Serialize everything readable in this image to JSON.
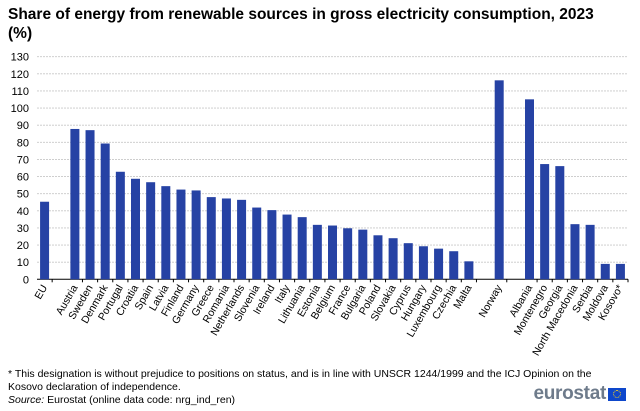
{
  "chart_data": {
    "type": "bar",
    "title": "Share of energy from renewable sources in gross electricity consumption, 2023 (%)",
    "xlabel": "",
    "ylabel": "",
    "ylim": [
      0,
      130
    ],
    "yticks": [
      0,
      10,
      20,
      30,
      40,
      50,
      60,
      70,
      80,
      90,
      100,
      110,
      120,
      130
    ],
    "grid": true,
    "bar_color": "#2642a4",
    "groups": [
      {
        "categories": [
          "EU"
        ],
        "values": [
          45.3
        ]
      },
      {
        "categories": [
          "Austria",
          "Sweden",
          "Denmark",
          "Portugal",
          "Croatia",
          "Spain",
          "Latvia",
          "Finland",
          "Germany",
          "Greece",
          "Romania",
          "Netherlands",
          "Slovenia",
          "Ireland",
          "Italy",
          "Lithuania",
          "Estonia",
          "Belgium",
          "France",
          "Bulgaria",
          "Poland",
          "Slovakia",
          "Cyprus",
          "Hungary",
          "Luxembourg",
          "Czechia",
          "Malta"
        ],
        "values": [
          87.8,
          87.1,
          79.3,
          62.8,
          58.7,
          56.7,
          54.4,
          52.4,
          51.9,
          48.0,
          47.2,
          46.4,
          41.9,
          40.4,
          37.8,
          36.3,
          31.8,
          31.4,
          29.8,
          29.0,
          25.7,
          24.0,
          21.1,
          19.3,
          17.9,
          16.4,
          10.5
        ]
      },
      {
        "categories": [
          "Norway"
        ],
        "values": [
          116.2
        ]
      },
      {
        "categories": [
          "Albania",
          "Montenegro",
          "Georgia",
          "North Macedonia",
          "Serbia",
          "Moldova",
          "Kosovo*"
        ],
        "values": [
          105.1,
          67.3,
          66.1,
          32.2,
          31.8,
          9.0,
          9.0
        ]
      }
    ]
  },
  "footnote": "* This designation is without prejudice to positions on status, and is in line with UNSCR 1244/1999 and the ICJ Opinion on the Kosovo declaration of independence.",
  "source_label": "Source:",
  "source_text": " Eurostat (online data code: nrg_ind_ren)",
  "logo": "eurostat"
}
